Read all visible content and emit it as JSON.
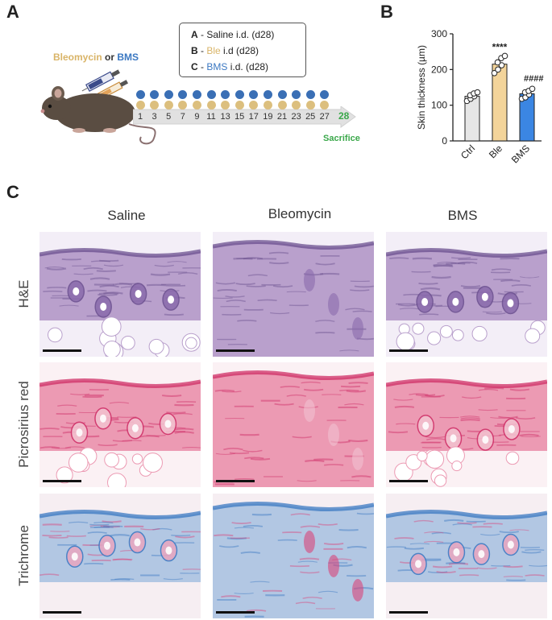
{
  "panels": {
    "A": {
      "letter": "A",
      "treatment_label_1": "Bleomycin",
      "treatment_label_or": "or",
      "treatment_label_2": "BMS",
      "legend": [
        {
          "key": "A",
          "sep": " - ",
          "name": "Saline",
          "rest": " i.d. (d28)",
          "color": "#222222"
        },
        {
          "key": "B",
          "sep": " - ",
          "name": "Ble",
          "rest": " i.d (d28)",
          "color": "#d9b467"
        },
        {
          "key": "C",
          "sep": " - ",
          "name": "BMS",
          "rest": " i.d. (d28)",
          "color": "#3b78c2"
        }
      ],
      "timeline_days": [
        "1",
        "3",
        "5",
        "7",
        "9",
        "11",
        "13",
        "15",
        "17",
        "19",
        "21",
        "23",
        "25",
        "27"
      ],
      "end_day": "28",
      "end_label": "Sacrifice",
      "dot_colors": {
        "top": "#3a6fb5",
        "bottom": "#dcbf7e"
      },
      "end_color": "#3aa84a"
    },
    "B": {
      "letter": "B",
      "chart_data": {
        "type": "bar",
        "categories": [
          "Ctrl",
          "Ble",
          "BMS"
        ],
        "values": [
          125,
          215,
          132
        ],
        "errors": [
          6,
          12,
          8
        ],
        "points": [
          [
            112,
            118,
            125,
            128,
            133,
            136
          ],
          [
            190,
            200,
            212,
            220,
            232,
            238
          ],
          [
            118,
            122,
            130,
            136,
            140,
            146
          ]
        ],
        "colors": [
          "#e6e6e6",
          "#f3d49a",
          "#3b86e3"
        ],
        "ylabel": "Skin thickness (µm)",
        "ylim": [
          0,
          300
        ],
        "yticks": [
          0,
          100,
          200,
          300
        ],
        "annotations": [
          "****",
          "####"
        ]
      }
    },
    "C": {
      "letter": "C",
      "columns": [
        "Saline",
        "Bleomycin",
        "BMS"
      ],
      "rows": [
        "H&E",
        "Picrosirius red",
        "Trichrome"
      ]
    }
  }
}
